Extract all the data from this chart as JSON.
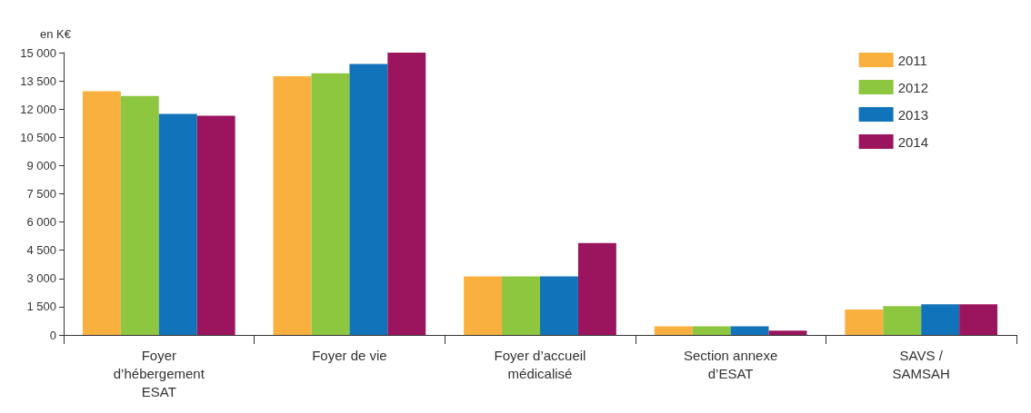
{
  "chart_data": {
    "type": "bar",
    "ylabel": "en K€",
    "categories": [
      "Foyer\nd’hébergement\nESAT",
      "Foyer de vie",
      "Foyer d’accueil\nmédicalisé",
      "Section annexe\nd’ESAT",
      "SAVS /\nSAMSAH"
    ],
    "series": [
      {
        "name": "2011",
        "color": "#f9b03f",
        "values": [
          12950,
          13750,
          3110,
          460,
          1350
        ]
      },
      {
        "name": "2012",
        "color": "#8dc63f",
        "values": [
          12700,
          13900,
          3110,
          460,
          1530
        ]
      },
      {
        "name": "2013",
        "color": "#1173b9",
        "values": [
          11750,
          14400,
          3110,
          460,
          1630
        ]
      },
      {
        "name": "2014",
        "color": "#9b155e",
        "values": [
          11650,
          15000,
          4880,
          230,
          1630
        ]
      }
    ],
    "ylim": [
      0,
      15000
    ],
    "yticks": [
      0,
      {
        "value": 1500,
        "label": "1 500"
      },
      {
        "value": 3000,
        "label": "3 000"
      },
      {
        "value": 4500,
        "label": "4 500"
      },
      {
        "value": 6000,
        "label": "6 000"
      },
      {
        "value": 7500,
        "label": "7 500"
      },
      {
        "value": 9000,
        "label": "9 000"
      },
      {
        "value": 10500,
        "label": "10 500"
      },
      {
        "value": 12000,
        "label": "12 000"
      },
      {
        "value": 13500,
        "label": "13 500"
      },
      {
        "value": 15000,
        "label": "15 000"
      }
    ],
    "grid": false,
    "legend": "top right"
  }
}
